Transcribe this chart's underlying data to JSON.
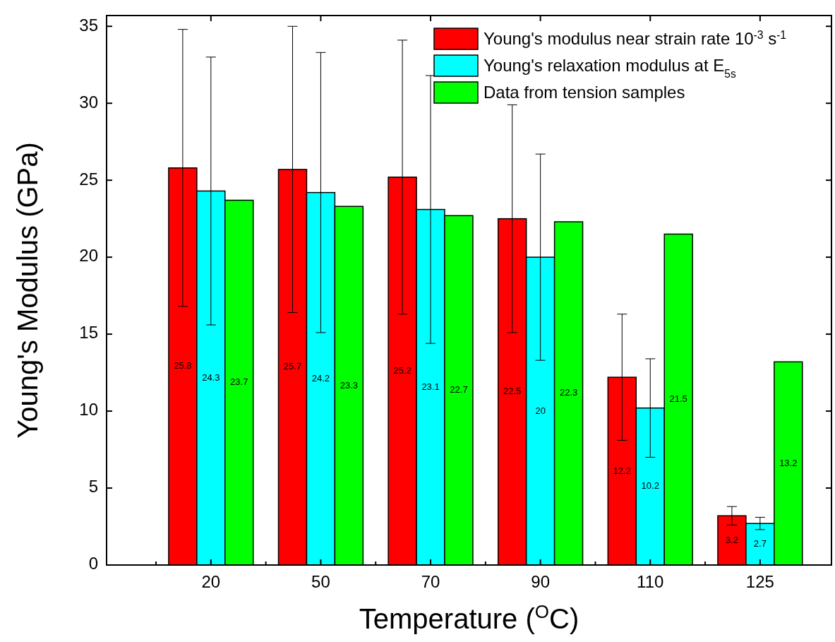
{
  "chart_data": {
    "type": "bar",
    "xlabel": "Temperature ($^{O}$C)",
    "ylabel": "Young's Modulus (GPa)",
    "categories": [
      "20",
      "50",
      "70",
      "90",
      "110",
      "125"
    ],
    "series": [
      {
        "name": "Young's modulus near strain rate 10$^{-3}$ s$^{-1}$",
        "color": "#ff0000",
        "values": [
          25.8,
          25.7,
          25.2,
          22.5,
          12.2,
          3.2
        ],
        "errors": [
          9.0,
          9.3,
          8.9,
          7.4,
          4.1,
          0.6
        ]
      },
      {
        "name": "Young's relaxation modulus at E$_{5s}$",
        "color": "#00ffff",
        "values": [
          24.3,
          24.2,
          23.1,
          20,
          10.2,
          2.7
        ],
        "errors": [
          8.7,
          9.1,
          8.7,
          6.7,
          3.2,
          0.4
        ]
      },
      {
        "name": "Data from tension samples",
        "color": "#00ff00",
        "values": [
          23.7,
          23.3,
          22.7,
          22.3,
          21.5,
          13.2
        ]
      }
    ],
    "ylim": [
      0,
      35.7
    ],
    "yticks": [
      0,
      5,
      10,
      15,
      20,
      25,
      30,
      35
    ],
    "data_labels": true,
    "legend": "top right",
    "grid": false
  }
}
